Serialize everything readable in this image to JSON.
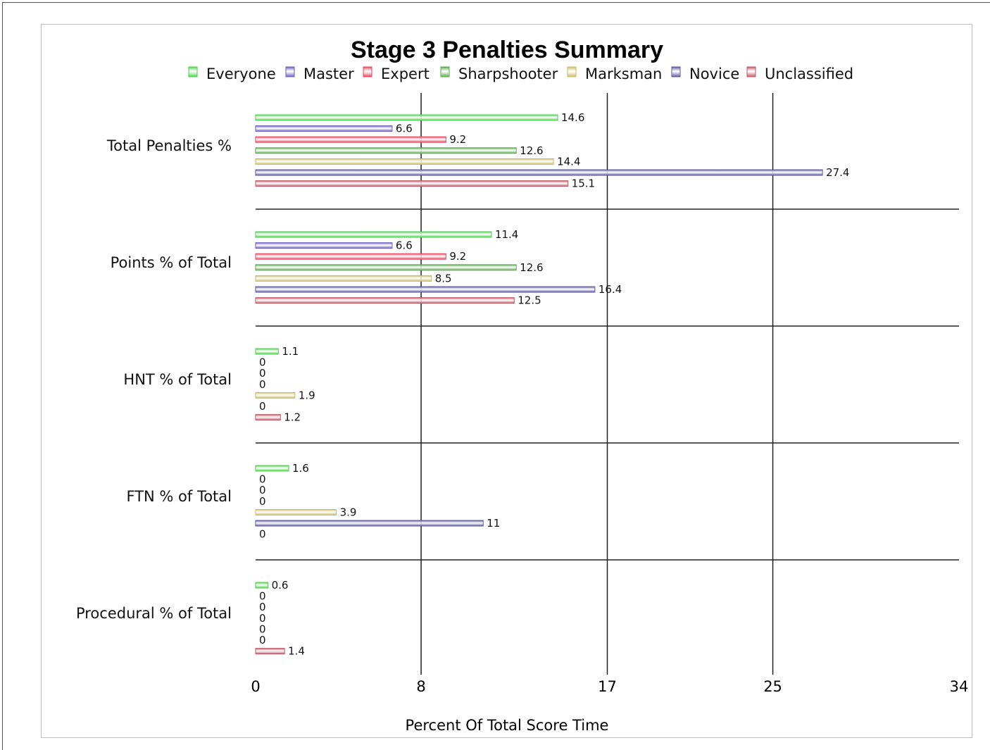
{
  "chart_data": {
    "type": "bar",
    "orientation": "horizontal",
    "title": "Stage 3 Penalties Summary",
    "xlabel": "Percent Of Total Score Time",
    "ylabel": "",
    "xlim": [
      0,
      34
    ],
    "xticks": [
      0,
      8,
      17,
      25,
      34
    ],
    "legend_position": "top",
    "categories": [
      "Total Penalties %",
      "Points % of Total",
      "HNT % of Total",
      "FTN % of Total",
      "Procedural % of Total"
    ],
    "series": [
      {
        "name": "Everyone",
        "color": "#4fd14f",
        "values": [
          14.6,
          11.4,
          1.1,
          1.6,
          0.6
        ]
      },
      {
        "name": "Master",
        "color": "#6f5fc0",
        "values": [
          6.6,
          6.6,
          0,
          0,
          0
        ]
      },
      {
        "name": "Expert",
        "color": "#e8485e",
        "values": [
          9.2,
          9.2,
          0,
          0,
          0
        ]
      },
      {
        "name": "Sharpshooter",
        "color": "#5cab4f",
        "values": [
          12.6,
          12.6,
          0,
          0,
          0
        ]
      },
      {
        "name": "Marksman",
        "color": "#c9bd6a",
        "values": [
          14.4,
          8.5,
          1.9,
          3.9,
          0
        ]
      },
      {
        "name": "Novice",
        "color": "#5e5aa0",
        "values": [
          27.4,
          16.4,
          0,
          11,
          0
        ]
      },
      {
        "name": "Unclassified",
        "color": "#c05a66",
        "values": [
          15.1,
          12.5,
          1.2,
          0,
          1.4
        ]
      }
    ]
  }
}
